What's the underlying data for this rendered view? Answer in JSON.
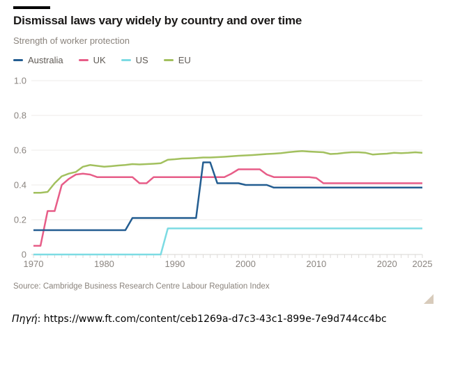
{
  "header": {
    "title": "Dismissal laws vary widely by country and over time",
    "subtitle": "Strength of worker protection"
  },
  "legend": {
    "items": [
      {
        "label": "Australia",
        "color": "#235d91"
      },
      {
        "label": "UK",
        "color": "#e75d88"
      },
      {
        "label": "US",
        "color": "#7cdbe3"
      },
      {
        "label": "EU",
        "color": "#a2c05e"
      }
    ]
  },
  "chart_data": {
    "type": "line",
    "title": "Dismissal laws vary widely by country and over time",
    "subtitle": "Strength of worker protection",
    "xlabel": "",
    "ylabel": "Strength of worker protection",
    "ylim": [
      0,
      1.0
    ],
    "yticks": [
      0,
      0.2,
      0.4,
      0.6,
      0.8,
      1.0
    ],
    "ytick_labels": [
      "0",
      "0.2",
      "0.4",
      "0.6",
      "0.8",
      "1.0"
    ],
    "xticks": [
      1970,
      1980,
      1990,
      2000,
      2010,
      2020,
      2025
    ],
    "grid": "horizontal",
    "legend_position": "top",
    "x": [
      1970,
      1971,
      1972,
      1973,
      1974,
      1975,
      1976,
      1977,
      1978,
      1979,
      1980,
      1981,
      1982,
      1983,
      1984,
      1985,
      1986,
      1987,
      1988,
      1989,
      1990,
      1991,
      1992,
      1993,
      1994,
      1995,
      1996,
      1997,
      1998,
      1999,
      2000,
      2001,
      2002,
      2003,
      2004,
      2005,
      2006,
      2007,
      2008,
      2009,
      2010,
      2011,
      2012,
      2013,
      2014,
      2015,
      2016,
      2017,
      2018,
      2019,
      2020,
      2021,
      2022,
      2023,
      2024,
      2025
    ],
    "series": [
      {
        "name": "Australia",
        "color": "#235d91",
        "values": [
          0.14,
          0.14,
          0.14,
          0.14,
          0.14,
          0.14,
          0.14,
          0.14,
          0.14,
          0.14,
          0.14,
          0.14,
          0.14,
          0.14,
          0.21,
          0.21,
          0.21,
          0.21,
          0.21,
          0.21,
          0.21,
          0.21,
          0.21,
          0.21,
          0.53,
          0.53,
          0.41,
          0.41,
          0.41,
          0.41,
          0.4,
          0.4,
          0.4,
          0.4,
          0.385,
          0.385,
          0.385,
          0.385,
          0.385,
          0.385,
          0.385,
          0.385,
          0.385,
          0.385,
          0.385,
          0.385,
          0.385,
          0.385,
          0.385,
          0.385,
          0.385,
          0.385,
          0.385,
          0.385,
          0.385,
          0.385
        ]
      },
      {
        "name": "UK",
        "color": "#e75d88",
        "values": [
          0.05,
          0.05,
          0.25,
          0.25,
          0.4,
          0.435,
          0.46,
          0.465,
          0.46,
          0.445,
          0.445,
          0.445,
          0.445,
          0.445,
          0.445,
          0.41,
          0.41,
          0.445,
          0.445,
          0.445,
          0.445,
          0.445,
          0.445,
          0.445,
          0.445,
          0.445,
          0.445,
          0.445,
          0.465,
          0.49,
          0.49,
          0.49,
          0.49,
          0.46,
          0.445,
          0.445,
          0.445,
          0.445,
          0.445,
          0.445,
          0.44,
          0.41,
          0.41,
          0.41,
          0.41,
          0.41,
          0.41,
          0.41,
          0.41,
          0.41,
          0.41,
          0.41,
          0.41,
          0.41,
          0.41,
          0.41
        ]
      },
      {
        "name": "US",
        "color": "#7cdbe3",
        "values": [
          0,
          0,
          0,
          0,
          0,
          0,
          0,
          0,
          0,
          0,
          0,
          0,
          0,
          0,
          0,
          0,
          0,
          0,
          0,
          0.15,
          0.15,
          0.15,
          0.15,
          0.15,
          0.15,
          0.15,
          0.15,
          0.15,
          0.15,
          0.15,
          0.15,
          0.15,
          0.15,
          0.15,
          0.15,
          0.15,
          0.15,
          0.15,
          0.15,
          0.15,
          0.15,
          0.15,
          0.15,
          0.15,
          0.15,
          0.15,
          0.15,
          0.15,
          0.15,
          0.15,
          0.15,
          0.15,
          0.15,
          0.15,
          0.15,
          0.15
        ]
      },
      {
        "name": "EU",
        "color": "#a2c05e",
        "values": [
          0.355,
          0.355,
          0.36,
          0.41,
          0.45,
          0.465,
          0.475,
          0.505,
          0.515,
          0.51,
          0.505,
          0.508,
          0.512,
          0.515,
          0.52,
          0.518,
          0.52,
          0.522,
          0.525,
          0.545,
          0.548,
          0.552,
          0.553,
          0.555,
          0.558,
          0.558,
          0.56,
          0.562,
          0.565,
          0.568,
          0.57,
          0.572,
          0.575,
          0.578,
          0.58,
          0.583,
          0.588,
          0.592,
          0.595,
          0.592,
          0.59,
          0.588,
          0.578,
          0.58,
          0.585,
          0.588,
          0.588,
          0.585,
          0.575,
          0.578,
          0.58,
          0.585,
          0.583,
          0.585,
          0.588,
          0.585
        ]
      }
    ]
  },
  "footer": {
    "source": "Source: Cambridge Business Research Centre Labour Regulation Index",
    "attribution_label": "Πηγή",
    "attribution_separator": ": ",
    "attribution_url": "https://www.ft.com/content/ceb1269a-d7c3-43c1-899e-7e9d744cc4bc"
  },
  "colors": {
    "background": "#ffffff",
    "title_text": "#1a1817",
    "muted_text": "#8a837c",
    "tick_text": "#8b8580",
    "gridline": "#edebe8",
    "baseline": "#d7d4d1",
    "minor_tick": "#dedbd8",
    "resize_handle": "#d8cbbb"
  }
}
